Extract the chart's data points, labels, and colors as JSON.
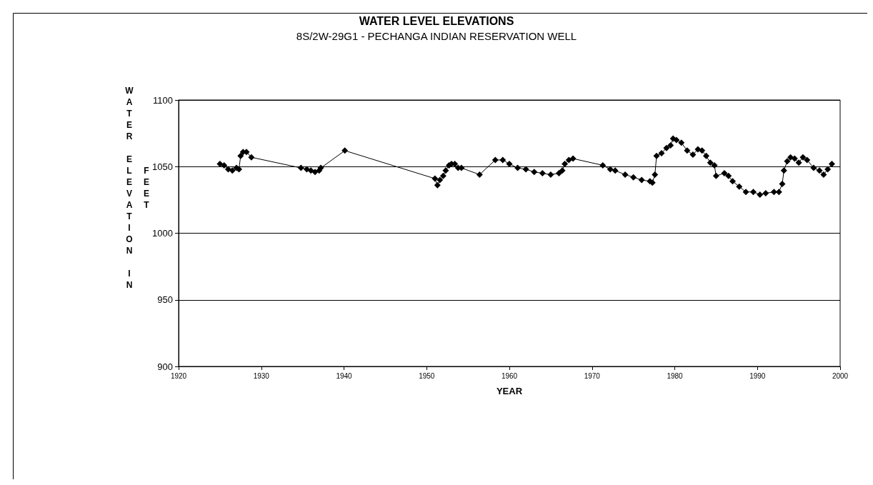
{
  "chart_data": {
    "type": "line",
    "title": "WATER LEVEL ELEVATIONS",
    "subtitle": "8S/2W-29G1 - PECHANGA INDIAN RESERVATION WELL",
    "xlabel": "YEAR",
    "ylabel": "WATER ELEVATION IN FEET",
    "x": [
      1925.0,
      1925.5,
      1926,
      1926.5,
      1927,
      1927.3,
      1927.5,
      1927.8,
      1928.2,
      1928.8,
      1934.8,
      1935.5,
      1936,
      1936.5,
      1937,
      1937.2,
      1940.1,
      1951,
      1951.3,
      1951.6,
      1952,
      1952.3,
      1952.7,
      1953,
      1953.4,
      1953.8,
      1954.2,
      1956.4,
      1958.3,
      1959.2,
      1960,
      1961,
      1962,
      1963,
      1964,
      1965,
      1966,
      1966.4,
      1966.7,
      1967.2,
      1967.7,
      1971.3,
      1972.2,
      1972.8,
      1974,
      1975,
      1976,
      1977,
      1977.3,
      1977.6,
      1977.8,
      1978.4,
      1979,
      1979.5,
      1979.8,
      1980.2,
      1980.8,
      1981.5,
      1982.2,
      1982.8,
      1983.3,
      1983.8,
      1984.3,
      1984.8,
      1985,
      1986,
      1986.5,
      1987,
      1987.8,
      1988.6,
      1989.5,
      1990.3,
      1991,
      1992,
      1992.6,
      1993,
      1993.2,
      1993.6,
      1994,
      1994.5,
      1995,
      1995.5,
      1996,
      1996.8,
      1997.5,
      1998,
      1998.5,
      1999
    ],
    "series": [
      {
        "color": "#000000",
        "values": [
          1052,
          1051,
          1048,
          1047,
          1049,
          1048,
          1058,
          1061,
          1061,
          1057,
          1049,
          1048,
          1047,
          1046,
          1047,
          1049,
          1062,
          1041,
          1036,
          1040,
          1043,
          1047,
          1051,
          1052,
          1052,
          1049,
          1049,
          1044,
          1055,
          1055,
          1052,
          1049,
          1048,
          1046,
          1045,
          1044,
          1045,
          1047,
          1052,
          1055,
          1056,
          1051,
          1048,
          1047,
          1044,
          1042,
          1040,
          1039,
          1038,
          1044,
          1058,
          1060,
          1064,
          1066,
          1071,
          1070,
          1068,
          1062,
          1059,
          1063,
          1062,
          1058,
          1053,
          1051,
          1043,
          1045,
          1043,
          1039,
          1035,
          1031,
          1031,
          1029,
          1030,
          1031,
          1031,
          1037,
          1047,
          1054,
          1057,
          1056,
          1053,
          1057,
          1055,
          1049,
          1047,
          1044,
          1048,
          1052
        ]
      }
    ],
    "xlim": [
      1920,
      2000
    ],
    "xticks": [
      1920,
      1930,
      1940,
      1950,
      1960,
      1970,
      1980,
      1990,
      2000
    ],
    "ylim": [
      900,
      1100
    ],
    "yticks": [
      900,
      950,
      1000,
      1050,
      1100
    ],
    "grid": "y",
    "marker": "diamond",
    "line_style": "solid"
  }
}
